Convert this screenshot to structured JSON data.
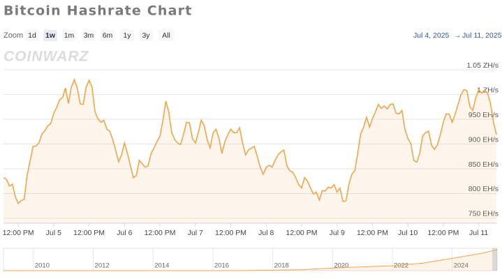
{
  "title": "Bitcoin Hashrate Chart",
  "zoom": {
    "label": "Zoom",
    "buttons": [
      "1d",
      "1w",
      "1m",
      "3m",
      "6m",
      "1y",
      "3y",
      "All"
    ],
    "selected": 1
  },
  "range": {
    "from": "Jul 4, 2025",
    "arrow": "→",
    "to": "Jul 11, 2025"
  },
  "watermark": "COINWARZ",
  "chart_data": {
    "type": "area",
    "color": "#f2a54a",
    "x": [
      7,
      8,
      9,
      10,
      11,
      12,
      13,
      14,
      15,
      16,
      17,
      18,
      19,
      20,
      21,
      22,
      23,
      24,
      25,
      26,
      27,
      28,
      29,
      30,
      31,
      32,
      33,
      34,
      35,
      36,
      37,
      38,
      39,
      40,
      41,
      42,
      43,
      44,
      45,
      46,
      47,
      48,
      49,
      50,
      51,
      52,
      53,
      54,
      55,
      56,
      57,
      58,
      59,
      60,
      61,
      62,
      63,
      64,
      65,
      66,
      67,
      68,
      69,
      70,
      71,
      72,
      73,
      74,
      75,
      76,
      77,
      78,
      79,
      80,
      81,
      82,
      83,
      84,
      85,
      86,
      87,
      88,
      89,
      90,
      91,
      92,
      93,
      94,
      95,
      96,
      97,
      98,
      99,
      100,
      101,
      102,
      103,
      104,
      105,
      106,
      107,
      108,
      109,
      110,
      111,
      112,
      113,
      114,
      115,
      116,
      117,
      118,
      119,
      120,
      121,
      122,
      123,
      124,
      125,
      126,
      127,
      128,
      129,
      130,
      131,
      132,
      133,
      134,
      135,
      136,
      137,
      138,
      139,
      140,
      141,
      142,
      143,
      144,
      145,
      146,
      147,
      148,
      149,
      150,
      151,
      152,
      153,
      154,
      155,
      156,
      157,
      158,
      159,
      160,
      161,
      162,
      163,
      164,
      165,
      166,
      167,
      168,
      169,
      170,
      171,
      172,
      173,
      174
    ],
    "values": [
      832,
      829,
      815,
      819,
      794,
      780,
      786,
      788,
      836,
      865,
      895,
      896,
      902,
      920,
      927,
      937,
      941,
      962,
      974,
      989,
      994,
      1013,
      982,
      1015,
      1030,
      1013,
      981,
      980,
      1015,
      1029,
      1015,
      965,
      951,
      944,
      948,
      930,
      926,
      909,
      888,
      864,
      878,
      902,
      881,
      856,
      832,
      836,
      867,
      860,
      853,
      856,
      881,
      892,
      905,
      916,
      948,
      987,
      965,
      923,
      909,
      902,
      899,
      920,
      944,
      943,
      911,
      902,
      923,
      948,
      937,
      909,
      892,
      923,
      930,
      912,
      881,
      905,
      919,
      930,
      923,
      923,
      933,
      902,
      878,
      888,
      892,
      895,
      874,
      853,
      839,
      853,
      857,
      853,
      867,
      878,
      884,
      888,
      856,
      846,
      843,
      832,
      818,
      811,
      832,
      825,
      811,
      799,
      803,
      787,
      806,
      805,
      813,
      811,
      818,
      803,
      811,
      784,
      785,
      818,
      839,
      846,
      881,
      920,
      934,
      954,
      934,
      951,
      965,
      980,
      972,
      977,
      971,
      980,
      981,
      962,
      961,
      968,
      930,
      911,
      901,
      867,
      863,
      881,
      916,
      923,
      926,
      898,
      889,
      898,
      919,
      944,
      961,
      960,
      944,
      960,
      980,
      1000,
      1010,
      1008,
      975,
      968,
      994,
      1010,
      1003,
      1009,
      1003,
      982,
      944,
      919
    ],
    "xlim": [
      7,
      174
    ],
    "xticks": [
      {
        "value": 12,
        "label": "12:00 PM"
      },
      {
        "value": 24,
        "label": "Jul 5"
      },
      {
        "value": 36,
        "label": "12:00 PM"
      },
      {
        "value": 48,
        "label": "Jul 6"
      },
      {
        "value": 60,
        "label": "12:00 PM"
      },
      {
        "value": 72,
        "label": "Jul 7"
      },
      {
        "value": 84,
        "label": "12:00 PM"
      },
      {
        "value": 96,
        "label": "Jul 8"
      },
      {
        "value": 108,
        "label": "12:00 PM"
      },
      {
        "value": 120,
        "label": "Jul 9"
      },
      {
        "value": 132,
        "label": "12:00 PM"
      },
      {
        "value": 144,
        "label": "Jul 10"
      },
      {
        "value": 156,
        "label": "12:00 PM"
      },
      {
        "value": 168,
        "label": "Jul 11"
      }
    ],
    "ylim": [
      740,
      1060
    ],
    "yticks": [
      {
        "value": 750,
        "label": "750 EH/s"
      },
      {
        "value": 800,
        "label": "800 EH/s"
      },
      {
        "value": 850,
        "label": "850 EH/s"
      },
      {
        "value": 900,
        "label": "900 EH/s"
      },
      {
        "value": 950,
        "label": "950 EH/s"
      },
      {
        "value": 1000,
        "label": "1 ZH/s"
      },
      {
        "value": 1050,
        "label": "1.05 ZH/s"
      }
    ],
    "grid": true,
    "navigator": {
      "x": [
        2009,
        2010,
        2011,
        2012,
        2013,
        2014,
        2015,
        2016,
        2017,
        2018,
        2019,
        2020,
        2021,
        2022,
        2023,
        2024,
        2025,
        2025.5
      ],
      "values": [
        0,
        0,
        0,
        0,
        0,
        0.3,
        0.5,
        1,
        3,
        20,
        45,
        120,
        170,
        220,
        330,
        550,
        780,
        940
      ],
      "xlim": [
        2009,
        2025.5
      ],
      "ylim": [
        0,
        1000
      ],
      "xticks": [
        2010,
        2012,
        2014,
        2016,
        2018,
        2020,
        2022,
        2024
      ]
    }
  }
}
